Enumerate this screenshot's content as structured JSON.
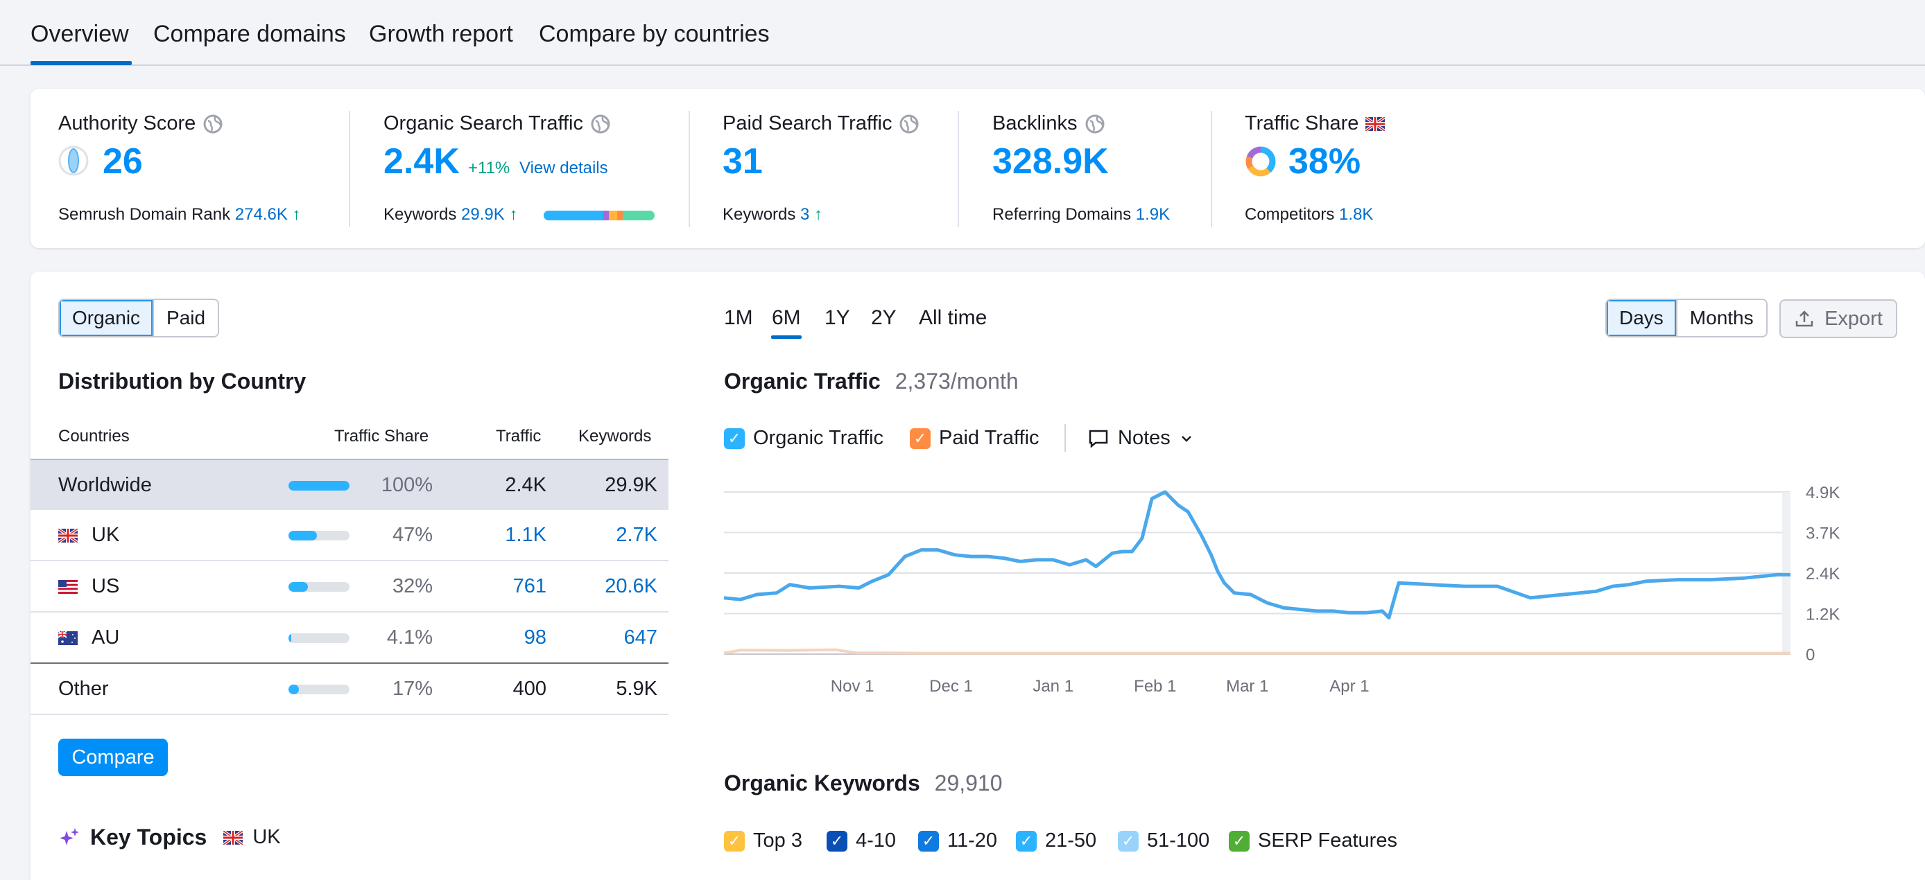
{
  "tabs": [
    "Overview",
    "Compare domains",
    "Growth report",
    "Compare by countries"
  ],
  "metrics": {
    "authority": {
      "title": "Authority Score",
      "value": "26",
      "sub_label": "Semrush Domain Rank",
      "sub_value": "274.6K",
      "arrow": "↑"
    },
    "organic": {
      "title": "Organic Search Traffic",
      "value": "2.4K",
      "change": "+11%",
      "link": "View details",
      "sub_label": "Keywords",
      "sub_value": "29.9K",
      "arrow": "↑"
    },
    "paid": {
      "title": "Paid Search Traffic",
      "value": "31",
      "sub_label": "Keywords",
      "sub_value": "3",
      "arrow": "↑"
    },
    "backlinks": {
      "title": "Backlinks",
      "value": "328.9K",
      "sub_label": "Referring Domains",
      "sub_value": "1.9K"
    },
    "share": {
      "title": "Traffic Share",
      "value": "38%",
      "sub_label": "Competitors",
      "sub_value": "1.8K"
    }
  },
  "toggle": {
    "organic": "Organic",
    "paid": "Paid"
  },
  "distribution": {
    "title": "Distribution by Country",
    "headers": {
      "countries": "Countries",
      "share": "Traffic Share",
      "traffic": "Traffic",
      "keywords": "Keywords"
    },
    "rows": [
      {
        "name": "Worldwide",
        "share": "100%",
        "share_value": 100,
        "traffic": "2.4K",
        "keywords": "29.9K"
      },
      {
        "name": "UK",
        "share": "47%",
        "share_value": 47,
        "traffic": "1.1K",
        "keywords": "2.7K"
      },
      {
        "name": "US",
        "share": "32%",
        "share_value": 32,
        "traffic": "761",
        "keywords": "20.6K"
      },
      {
        "name": "AU",
        "share": "4.1%",
        "share_value": 4.1,
        "traffic": "98",
        "keywords": "647"
      },
      {
        "name": "Other",
        "share": "17%",
        "share_value": 17,
        "traffic": "400",
        "keywords": "5.9K"
      }
    ],
    "compare": "Compare"
  },
  "key_topics": {
    "title": "Key Topics",
    "country": "UK"
  },
  "periods": [
    "1M",
    "6M",
    "1Y",
    "2Y",
    "All time"
  ],
  "granularity": {
    "days": "Days",
    "months": "Months"
  },
  "export": "Export",
  "organic_traffic": {
    "title": "Organic Traffic",
    "value": "2,373/month"
  },
  "legend": {
    "organic": "Organic Traffic",
    "paid": "Paid Traffic",
    "notes": "Notes"
  },
  "organic_keywords": {
    "title": "Organic Keywords",
    "value": "29,910",
    "filters": [
      "Top 3",
      "4-10",
      "11-20",
      "21-50",
      "51-100",
      "SERP Features"
    ]
  },
  "colors": {
    "accent": "#008ff8",
    "line": "#4aa8ec",
    "paid": "#ff8c43"
  },
  "chart_data": {
    "type": "line",
    "title": "Organic Traffic",
    "x_ticks": [
      "Nov 1",
      "Dec 1",
      "Jan 1",
      "Feb 1",
      "Mar 1",
      "Apr 1"
    ],
    "y_ticks": [
      "4.9K",
      "3.7K",
      "2.4K",
      "1.2K",
      "0"
    ],
    "ylim": [
      0,
      4900
    ],
    "series": [
      {
        "name": "Organic Traffic",
        "color": "#4aa8ec",
        "x_days": [
          0,
          5,
          10,
          16,
          20,
          26,
          35,
          41,
          45,
          50,
          55,
          60,
          65,
          70,
          75,
          80,
          85,
          90,
          95,
          100,
          105,
          110,
          113,
          118,
          121,
          124,
          127,
          130,
          134,
          138,
          141,
          145,
          148,
          150,
          152,
          155,
          160,
          165,
          170,
          175,
          180,
          185,
          190,
          195,
          200,
          202,
          205,
          215,
          225,
          235,
          245,
          250,
          255,
          260,
          265,
          270,
          275,
          280,
          290,
          300,
          310,
          320,
          324
        ],
        "values": [
          1700,
          1650,
          1800,
          1850,
          2100,
          2000,
          2050,
          2000,
          2200,
          2400,
          2950,
          3150,
          3150,
          3000,
          2950,
          2950,
          2900,
          2800,
          2850,
          2850,
          2700,
          2850,
          2650,
          3050,
          3100,
          3100,
          3500,
          4700,
          4900,
          4500,
          4300,
          3600,
          3000,
          2500,
          2150,
          1850,
          1800,
          1550,
          1400,
          1350,
          1300,
          1300,
          1250,
          1250,
          1300,
          1100,
          2150,
          2100,
          2050,
          2050,
          1700,
          1750,
          1800,
          1850,
          1900,
          2050,
          2100,
          2200,
          2250,
          2250,
          2300,
          2400,
          2400
        ]
      },
      {
        "name": "Paid Traffic",
        "color": "#ff8c43",
        "x_days": [
          0,
          5,
          20,
          34,
          40,
          60,
          120,
          200,
          280,
          324
        ],
        "values": [
          30,
          120,
          110,
          130,
          40,
          30,
          30,
          30,
          30,
          30
        ]
      }
    ],
    "x_tick_days": [
      39,
      69,
      100,
      131,
      159,
      190
    ],
    "x_range_days": [
      0,
      324
    ]
  }
}
